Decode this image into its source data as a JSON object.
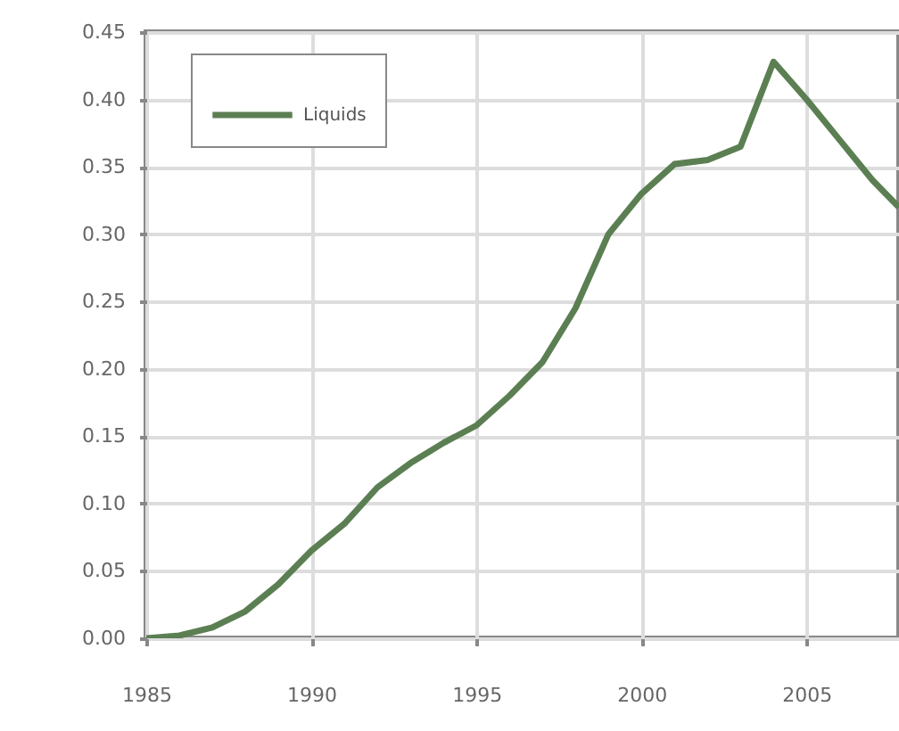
{
  "chart_data": {
    "type": "line",
    "x": [
      1985,
      1986,
      1987,
      1988,
      1989,
      1990,
      1991,
      1992,
      1993,
      1994,
      1995,
      1996,
      1997,
      1998,
      1999,
      2000,
      2001,
      2002,
      2003,
      2004,
      2005,
      2006,
      2007,
      2007.8
    ],
    "series": [
      {
        "name": "Liquids",
        "color": "#5b7f52",
        "values": [
          0,
          0.002,
          0.008,
          0.02,
          0.04,
          0.065,
          0.085,
          0.112,
          0.13,
          0.145,
          0.158,
          0.18,
          0.205,
          0.245,
          0.3,
          0.33,
          0.352,
          0.355,
          0.365,
          0.428,
          0.4,
          0.37,
          0.34,
          0.32
        ]
      }
    ],
    "xlim": [
      1985,
      2007.8
    ],
    "xticks": [
      1985,
      1990,
      1995,
      2000,
      2005
    ],
    "ylim": [
      0,
      0.45
    ],
    "yticks": [
      {
        "value": 0,
        "label": "0.00"
      },
      0.05,
      {
        "value": 0.1,
        "label": "0.10"
      },
      0.15,
      {
        "value": 0.2,
        "label": "0.20"
      },
      0.25,
      {
        "value": 0.3,
        "label": "0.30"
      },
      0.35,
      {
        "value": 0.4,
        "label": "0.40"
      },
      0.45
    ],
    "grid": true,
    "legend": "top left",
    "marker": "none",
    "line_style": "solid"
  }
}
